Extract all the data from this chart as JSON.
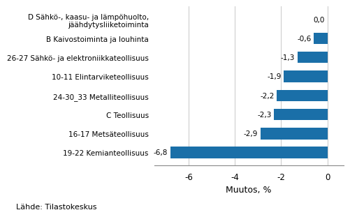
{
  "categories": [
    "19-22 Kemianteollisuus",
    "16-17 Metsäteollisuus",
    "C Teollisuus",
    "24-30_33 Metalliteollisuus",
    "10-11 Elintarviketeollisuus",
    "26-27 Sähkö- ja elektroniikkateollisuus",
    "B Kaivostoiminta ja louhinta",
    "D Sähkö-, kaasu- ja lämpöhuolto,\njäähdytysliiketoiminta"
  ],
  "values": [
    -6.8,
    -2.9,
    -2.3,
    -2.2,
    -1.9,
    -1.3,
    -0.6,
    0.0
  ],
  "bar_color": "#1a6fa8",
  "xlabel": "Muutos, %",
  "xlim": [
    -7.5,
    0.7
  ],
  "xticks": [
    -6,
    -4,
    -2,
    0
  ],
  "source_text": "Lähde: Tilastokeskus",
  "value_labels": [
    "-6,8",
    "-2,9",
    "-2,3",
    "-2,2",
    "-1,9",
    "-1,3",
    "-0,6",
    "0,0"
  ],
  "background_color": "#ffffff",
  "grid_color": "#c8c8c8",
  "bar_height": 0.6,
  "label_fontsize": 7.5,
  "tick_fontsize": 8.5,
  "xlabel_fontsize": 9,
  "source_fontsize": 8
}
